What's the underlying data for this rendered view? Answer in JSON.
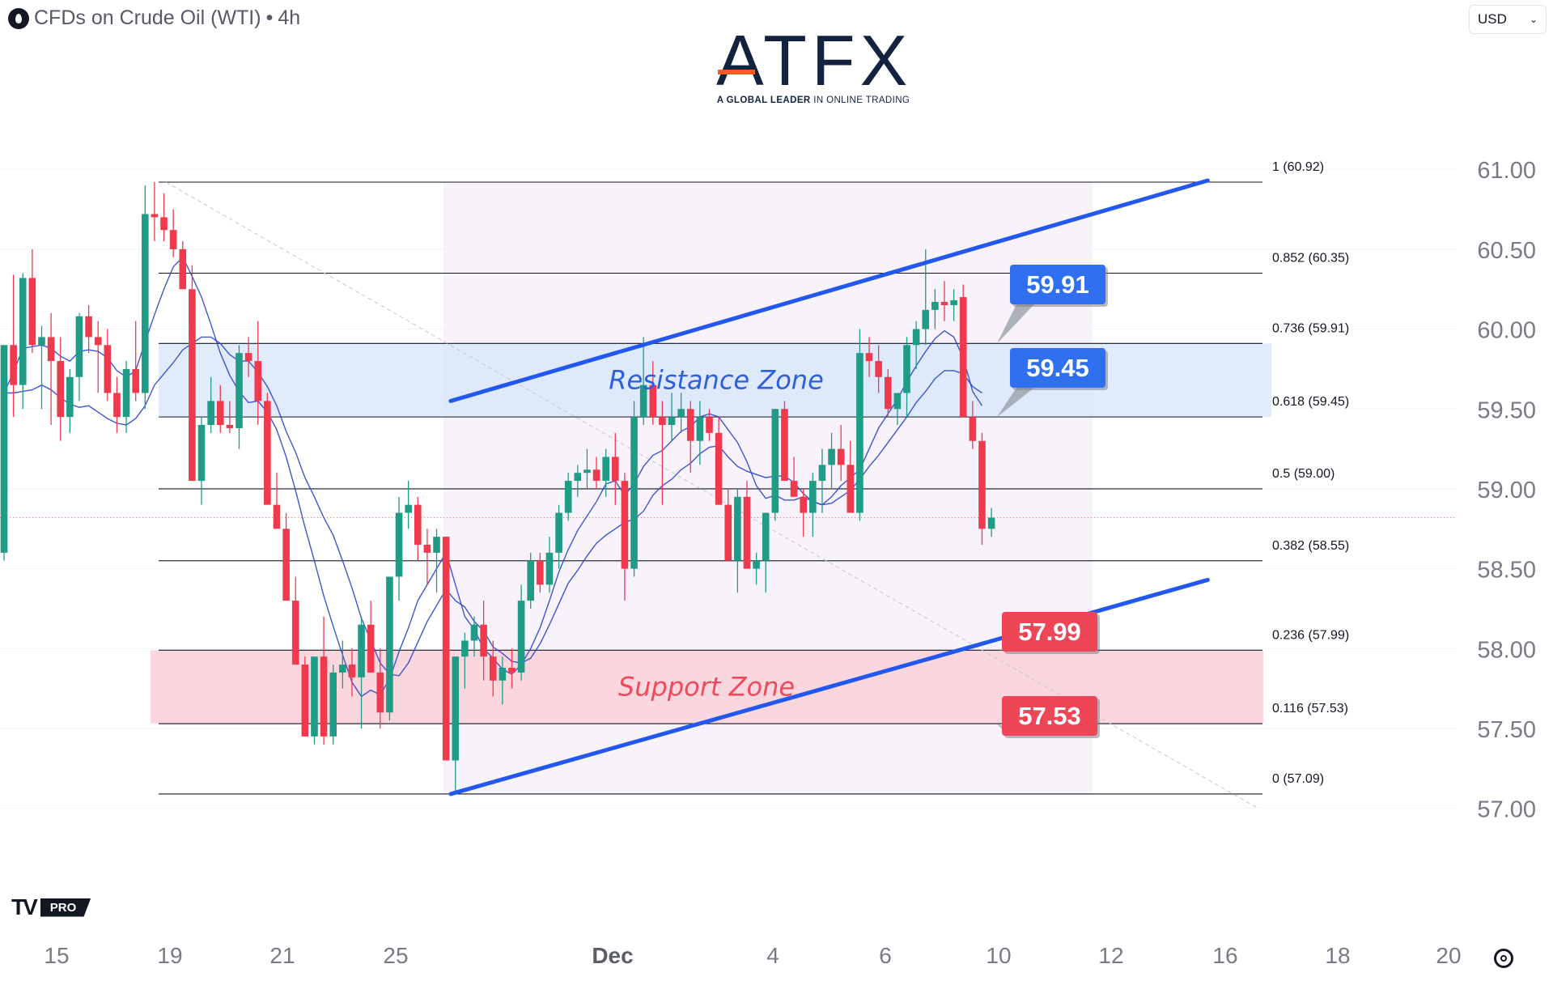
{
  "header": {
    "symbol_title": "CFDs on Crude Oil (WTI)",
    "separator": "•",
    "timeframe": "4h",
    "icon": "oil-drop-icon"
  },
  "currency_select": {
    "value": "USD",
    "icon": "chevron-down-icon"
  },
  "logo": {
    "wordmark": "ATFX",
    "tagline_bold": "A GLOBAL LEADER",
    "tagline_rest": "IN ONLINE TRADING"
  },
  "watermark": {
    "mark": "TV",
    "badge": "PRO"
  },
  "colors": {
    "up": "#1f9b86",
    "down": "#ef3a4e",
    "channel": "#2257f0",
    "ma_line": "#2a44c9",
    "resistance_fill": "#dbe8fb",
    "support_fill": "#f9d3da",
    "label_blue": "#2f6ff0",
    "label_red": "#ee4557",
    "axis_text": "#787b86"
  },
  "chart_data": {
    "type": "candlestick",
    "title": "",
    "ylim": [
      56.74,
      61.3
    ],
    "y_ticks": [
      "57.00",
      "57.50",
      "58.00",
      "58.50",
      "59.00",
      "59.50",
      "60.00",
      "60.50",
      "61.00"
    ],
    "x_ticks": [
      "15",
      "19",
      "21",
      "25",
      "Dec",
      "4",
      "6",
      "10",
      "12",
      "16",
      "18",
      "20"
    ],
    "candles_ohlc": [
      [
        58.6,
        59.9,
        58.55,
        59.9
      ],
      [
        59.9,
        60.34,
        59.45,
        59.65
      ],
      [
        59.65,
        60.35,
        59.5,
        60.32
      ],
      [
        60.32,
        60.5,
        59.85,
        59.9
      ],
      [
        59.9,
        60.02,
        59.5,
        59.95
      ],
      [
        59.95,
        60.1,
        59.4,
        59.8
      ],
      [
        59.8,
        59.95,
        59.3,
        59.45
      ],
      [
        59.45,
        59.75,
        59.35,
        59.7
      ],
      [
        59.7,
        60.1,
        59.55,
        60.08
      ],
      [
        60.08,
        60.15,
        59.85,
        59.95
      ],
      [
        59.95,
        60.05,
        59.6,
        59.9
      ],
      [
        59.9,
        60.0,
        59.55,
        59.6
      ],
      [
        59.6,
        59.7,
        59.35,
        59.45
      ],
      [
        59.45,
        59.8,
        59.35,
        59.75
      ],
      [
        59.75,
        60.05,
        59.55,
        59.6
      ],
      [
        59.6,
        60.9,
        59.5,
        60.72
      ],
      [
        60.72,
        60.92,
        60.55,
        60.7
      ],
      [
        60.7,
        60.85,
        60.55,
        60.62
      ],
      [
        60.62,
        60.75,
        60.45,
        60.5
      ],
      [
        60.5,
        60.55,
        60.25,
        60.25
      ],
      [
        60.25,
        60.4,
        59.9,
        59.05
      ],
      [
        59.05,
        59.45,
        58.9,
        59.4
      ],
      [
        59.4,
        59.7,
        59.35,
        59.55
      ],
      [
        59.55,
        59.65,
        59.35,
        59.4
      ],
      [
        59.4,
        59.55,
        59.35,
        59.38
      ],
      [
        59.38,
        59.9,
        59.25,
        59.85
      ],
      [
        59.85,
        59.95,
        59.7,
        59.8
      ],
      [
        59.8,
        60.05,
        59.4,
        59.55
      ],
      [
        59.55,
        59.6,
        58.9,
        58.9
      ],
      [
        58.9,
        59.1,
        58.75,
        58.75
      ],
      [
        58.75,
        58.85,
        58.3,
        58.3
      ],
      [
        58.3,
        58.45,
        57.9,
        57.9
      ],
      [
        57.9,
        57.95,
        57.45,
        57.45
      ],
      [
        57.45,
        57.95,
        57.4,
        57.95
      ],
      [
        57.95,
        58.2,
        57.4,
        57.45
      ],
      [
        57.45,
        57.9,
        57.4,
        57.85
      ],
      [
        57.85,
        58.05,
        57.75,
        57.9
      ],
      [
        57.9,
        58.0,
        57.7,
        57.82
      ],
      [
        57.82,
        58.2,
        57.5,
        58.15
      ],
      [
        58.15,
        58.3,
        57.85,
        57.85
      ],
      [
        57.85,
        58.0,
        57.5,
        57.6
      ],
      [
        57.6,
        58.45,
        57.55,
        58.45
      ],
      [
        58.45,
        58.95,
        58.3,
        58.85
      ],
      [
        58.85,
        59.05,
        58.75,
        58.9
      ],
      [
        58.9,
        58.95,
        58.55,
        58.65
      ],
      [
        58.65,
        58.75,
        58.4,
        58.6
      ],
      [
        58.6,
        58.75,
        58.35,
        58.7
      ],
      [
        58.7,
        58.7,
        57.3,
        57.3
      ],
      [
        57.3,
        57.95,
        57.09,
        57.95
      ],
      [
        57.95,
        58.1,
        57.75,
        58.05
      ],
      [
        58.05,
        58.2,
        57.95,
        58.15
      ],
      [
        58.15,
        58.3,
        57.8,
        57.95
      ],
      [
        57.95,
        58.05,
        57.7,
        57.8
      ],
      [
        57.8,
        57.95,
        57.65,
        57.88
      ],
      [
        57.88,
        58.0,
        57.75,
        57.85
      ],
      [
        57.85,
        58.4,
        57.8,
        58.3
      ],
      [
        58.3,
        58.6,
        58.25,
        58.55
      ],
      [
        58.55,
        58.6,
        58.35,
        58.4
      ],
      [
        58.4,
        58.7,
        58.35,
        58.6
      ],
      [
        58.6,
        58.9,
        58.5,
        58.85
      ],
      [
        58.85,
        59.1,
        58.8,
        59.05
      ],
      [
        59.05,
        59.15,
        58.95,
        59.1
      ],
      [
        59.1,
        59.25,
        59.0,
        59.12
      ],
      [
        59.12,
        59.2,
        59.0,
        59.05
      ],
      [
        59.05,
        59.25,
        58.95,
        59.2
      ],
      [
        59.2,
        59.35,
        58.9,
        59.05
      ],
      [
        59.05,
        59.1,
        58.3,
        58.5
      ],
      [
        58.5,
        59.55,
        58.45,
        59.45
      ],
      [
        59.45,
        59.95,
        59.4,
        59.65
      ],
      [
        59.65,
        59.8,
        59.4,
        59.45
      ],
      [
        59.45,
        59.55,
        58.9,
        59.4
      ],
      [
        59.4,
        59.6,
        59.3,
        59.45
      ],
      [
        59.45,
        59.6,
        59.35,
        59.5
      ],
      [
        59.5,
        59.55,
        59.1,
        59.3
      ],
      [
        59.3,
        59.55,
        59.15,
        59.45
      ],
      [
        59.45,
        59.5,
        59.3,
        59.35
      ],
      [
        59.35,
        59.45,
        58.9,
        58.9
      ],
      [
        58.9,
        59.0,
        58.55,
        58.55
      ],
      [
        58.55,
        59.0,
        58.35,
        58.95
      ],
      [
        58.95,
        59.05,
        58.5,
        58.5
      ],
      [
        58.5,
        58.6,
        58.4,
        58.55
      ],
      [
        58.55,
        58.85,
        58.35,
        58.85
      ],
      [
        58.85,
        59.5,
        58.8,
        59.5
      ],
      [
        59.5,
        59.55,
        59.05,
        59.05
      ],
      [
        59.05,
        59.2,
        58.95,
        58.95
      ],
      [
        58.95,
        59.0,
        58.7,
        58.85
      ],
      [
        58.85,
        59.1,
        58.7,
        59.05
      ],
      [
        59.05,
        59.25,
        58.85,
        59.15
      ],
      [
        59.15,
        59.35,
        59.0,
        59.25
      ],
      [
        59.25,
        59.4,
        59.05,
        59.15
      ],
      [
        59.15,
        59.3,
        58.9,
        58.85
      ],
      [
        58.85,
        60.0,
        58.8,
        59.85
      ],
      [
        59.85,
        59.95,
        59.7,
        59.8
      ],
      [
        59.8,
        59.9,
        59.6,
        59.7
      ],
      [
        59.7,
        59.75,
        59.45,
        59.5
      ],
      [
        59.5,
        59.6,
        59.4,
        59.6
      ],
      [
        59.6,
        59.95,
        59.45,
        59.9
      ],
      [
        59.9,
        60.05,
        59.75,
        60.0
      ],
      [
        60.0,
        60.5,
        59.9,
        60.12
      ],
      [
        60.12,
        60.25,
        60.0,
        60.17
      ],
      [
        60.17,
        60.3,
        60.05,
        60.15
      ],
      [
        60.15,
        60.25,
        60.05,
        60.18
      ],
      [
        60.2,
        60.28,
        59.45,
        59.45
      ],
      [
        59.45,
        59.55,
        59.25,
        59.3
      ],
      [
        59.3,
        59.35,
        58.65,
        58.75
      ],
      [
        58.75,
        58.88,
        58.7,
        58.82
      ]
    ],
    "moving_averages": [
      {
        "values": [
          59.6,
          59.6,
          59.61,
          59.62,
          59.65,
          59.62,
          59.57,
          59.53,
          59.51,
          59.52,
          59.48,
          59.44,
          59.41,
          59.4,
          59.44,
          59.52,
          59.65,
          59.72,
          59.79,
          59.87,
          59.91,
          59.95,
          59.95,
          59.91,
          59.84,
          59.8,
          59.8,
          59.73,
          59.64,
          59.52,
          59.36,
          59.23,
          59.07,
          58.95,
          58.82,
          58.71,
          58.55,
          58.38,
          58.19,
          58.05,
          57.91,
          57.84,
          57.83,
          57.91,
          58.04,
          58.17,
          58.27,
          58.37,
          58.3,
          58.26,
          58.17,
          58.11,
          58.01,
          57.97,
          57.92,
          57.91,
          57.94,
          58.03,
          58.15,
          58.28,
          58.41,
          58.49,
          58.58,
          58.66,
          58.71,
          58.75,
          58.79,
          58.81,
          58.86,
          58.96,
          59.02,
          59.06,
          59.12,
          59.16,
          59.22,
          59.26,
          59.27,
          59.2,
          59.14,
          59.11,
          59.09,
          59.07,
          59.08,
          59.08,
          59.04,
          58.97,
          58.92,
          58.9,
          58.91,
          58.95,
          58.99,
          59.06,
          59.14,
          59.21,
          59.29,
          59.37,
          59.45,
          59.54,
          59.61,
          59.69,
          59.74,
          59.74,
          59.72,
          59.64,
          59.6
        ],
        "period_label": ""
      },
      {
        "values": [
          59.6,
          59.73,
          59.88,
          59.89,
          59.9,
          59.88,
          59.83,
          59.8,
          59.86,
          59.87,
          59.86,
          59.82,
          59.74,
          59.7,
          59.74,
          59.92,
          60.09,
          60.25,
          60.39,
          60.45,
          60.33,
          60.2,
          60.03,
          59.85,
          59.71,
          59.61,
          59.54,
          59.55,
          59.48,
          59.37,
          59.2,
          58.99,
          58.76,
          58.55,
          58.33,
          58.14,
          57.96,
          57.79,
          57.7,
          57.74,
          57.71,
          57.81,
          57.98,
          58.13,
          58.3,
          58.4,
          58.5,
          58.6,
          58.4,
          58.2,
          58.12,
          58.0,
          57.94,
          57.87,
          57.84,
          57.9,
          58.0,
          58.13,
          58.3,
          58.48,
          58.62,
          58.74,
          58.83,
          58.92,
          59.03,
          59.05,
          58.96,
          59.03,
          59.14,
          59.21,
          59.24,
          59.3,
          59.36,
          59.39,
          59.45,
          59.47,
          59.45,
          59.37,
          59.29,
          59.17,
          59.02,
          58.94,
          58.96,
          58.93,
          58.93,
          58.95,
          58.92,
          58.9,
          58.95,
          59.02,
          59.07,
          59.12,
          59.25,
          59.38,
          59.47,
          59.56,
          59.67,
          59.77,
          59.86,
          59.94,
          59.99,
          59.95,
          59.82,
          59.61,
          59.52
        ],
        "period_label": ""
      }
    ],
    "fibonacci_levels": [
      {
        "ratio": "1",
        "price": 60.92,
        "label": "1 (60.92)"
      },
      {
        "ratio": "0.852",
        "price": 60.35,
        "label": "0.852 (60.35)"
      },
      {
        "ratio": "0.736",
        "price": 59.91,
        "label": "0.736 (59.91)"
      },
      {
        "ratio": "0.618",
        "price": 59.45,
        "label": "0.618 (59.45)"
      },
      {
        "ratio": "0.5",
        "price": 59.0,
        "label": "0.5 (59.00)"
      },
      {
        "ratio": "0.382",
        "price": 58.55,
        "label": "0.382 (58.55)"
      },
      {
        "ratio": "0.236",
        "price": 57.99,
        "label": "0.236 (57.99)"
      },
      {
        "ratio": "0.116",
        "price": 57.53,
        "label": "0.116 (57.53)"
      },
      {
        "ratio": "0",
        "price": 57.09,
        "label": "0 (57.09)"
      }
    ],
    "zones": [
      {
        "name": "Resistance Zone",
        "from": 59.45,
        "to": 59.91
      },
      {
        "name": "Support Zone",
        "from": 57.53,
        "to": 57.99
      }
    ],
    "channel": {
      "upper": {
        "from": [
          47.5,
          59.55
        ],
        "to": [
          128,
          60.93
        ]
      },
      "lower": {
        "from": [
          47.5,
          57.09
        ],
        "to": [
          128,
          58.43
        ]
      }
    },
    "price_callouts": [
      {
        "text": "59.91",
        "price": 59.91,
        "kind": "resistance"
      },
      {
        "text": "59.45",
        "price": 59.45,
        "kind": "resistance"
      },
      {
        "text": "57.99",
        "price": 57.99,
        "kind": "support"
      },
      {
        "text": "57.53",
        "price": 57.53,
        "kind": "support"
      }
    ],
    "last_price": 58.82
  }
}
